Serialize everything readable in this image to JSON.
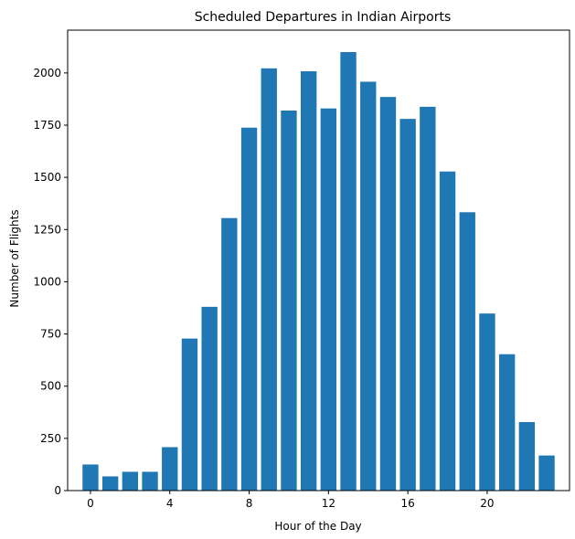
{
  "chart_data": {
    "type": "bar",
    "title": "Scheduled Departures in Indian Airports",
    "xlabel": "Hour of the Day",
    "ylabel": "Number of Flights",
    "x": [
      0,
      1,
      2,
      3,
      4,
      5,
      6,
      7,
      8,
      9,
      10,
      11,
      12,
      13,
      14,
      15,
      16,
      17,
      18,
      19,
      20,
      21,
      22,
      23
    ],
    "values": [
      125,
      68,
      90,
      90,
      208,
      728,
      880,
      1305,
      1738,
      2022,
      1820,
      2008,
      1830,
      2100,
      1958,
      1885,
      1780,
      1838,
      1528,
      1333,
      848,
      653,
      328,
      168
    ],
    "xticks": [
      0,
      4,
      8,
      12,
      16,
      20
    ],
    "yticks": [
      0,
      250,
      500,
      750,
      1000,
      1250,
      1500,
      1750,
      2000
    ],
    "xlim": [
      -1.15,
      24.15
    ],
    "ylim": [
      0,
      2205
    ],
    "bar_color": "#1f77b4",
    "grid": false,
    "legend": "none"
  }
}
